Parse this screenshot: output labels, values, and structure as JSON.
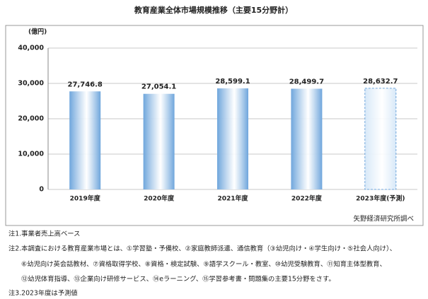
{
  "chart_data": {
    "type": "bar",
    "title": "教育産業全体市場規模推移（主要15分野計）",
    "y_label": "(億円)",
    "categories": [
      "2019年度",
      "2020年度",
      "2021年度",
      "2022年度",
      "2023年度(予測)"
    ],
    "values": [
      27746.8,
      27054.1,
      28599.1,
      28499.7,
      28632.7
    ],
    "value_labels": [
      "27,746.8",
      "27,054.1",
      "28,599.1",
      "28,499.7",
      "28,632.7"
    ],
    "colors": [
      "#6fa6dc",
      "#6fa6dc",
      "#6fa6dc",
      "#6fa6dc",
      "#d7e8f8"
    ],
    "dashed": [
      false,
      false,
      false,
      false,
      true
    ],
    "ylim": [
      0,
      40000
    ],
    "yticks": [
      0,
      {
        "value": 10000,
        "label": "10,000"
      },
      {
        "value": 20000,
        "label": "20,000"
      },
      {
        "value": 30000,
        "label": "30,000"
      },
      {
        "value": 40000,
        "label": "40,000"
      }
    ],
    "grid": true,
    "source": "矢野経済研究所調べ",
    "notes": [
      "注1.事業者売上高ベース",
      "注2.本調査における教育産業市場とは、①学習塾・予備校、②家庭教師派遣、通信教育（③幼児向け・④学生向け・⑤社会人向け）、",
      "⑥幼児向け英会話教材、⑦資格取得学校、⑧資格・検定試験、⑨語学スクール・教室、⑩幼児受験教育、⑪知育主体型教育、",
      "⑫幼児体育指導、⑬企業向け研修サービス、⑭eラーニング、⑮学習参考書・問題集の主要15分野をさす。",
      "注3.2023年度は予測値"
    ]
  }
}
